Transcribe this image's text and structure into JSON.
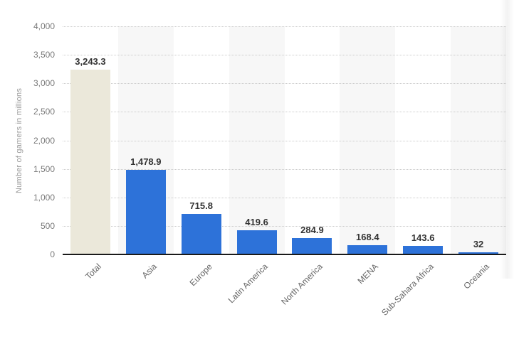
{
  "chart_data": {
    "type": "bar",
    "title": "",
    "xlabel": "",
    "ylabel": "Number of gamers in millions",
    "ylim": [
      0,
      4000
    ],
    "ytick_step": 500,
    "grid": "horizontal-dotted",
    "legend": "none",
    "background_stripes": "alternating columns, odd bands shaded",
    "categories": [
      "Total",
      "Asia",
      "Europe",
      "Latin America",
      "North America",
      "MENA",
      "Sub-Sahara Africa",
      "Oceania"
    ],
    "values": [
      3243.3,
      1478.9,
      715.8,
      419.6,
      284.9,
      168.4,
      143.6,
      32
    ],
    "value_labels": [
      "3,243.3",
      "1,478.9",
      "715.8",
      "419.6",
      "284.9",
      "168.4",
      "143.6",
      "32"
    ],
    "yticks": [
      {
        "value": 0,
        "label": "0"
      },
      {
        "value": 500,
        "label": "500"
      },
      {
        "value": 1000,
        "label": "1,000"
      },
      {
        "value": 1500,
        "label": "1,500"
      },
      {
        "value": 2000,
        "label": "2,000"
      },
      {
        "value": 2500,
        "label": "2,500"
      },
      {
        "value": 3000,
        "label": "3,000"
      },
      {
        "value": 3500,
        "label": "3,500"
      },
      {
        "value": 4000,
        "label": "4,000"
      }
    ],
    "colors": {
      "bar_default": "#2d72d9",
      "bar_total": "#ebe8da",
      "bar_colors": [
        "#ebe8da",
        "#2d72d9",
        "#2d72d9",
        "#2d72d9",
        "#2d72d9",
        "#2d72d9",
        "#2d72d9",
        "#2d72d9"
      ],
      "stripe": "#f7f7f7",
      "gridline": "#cccccc",
      "axis_line": "#1a1a1a",
      "value_label_text": "#333333",
      "tick_text": "#7a7a7a",
      "category_text": "#666666",
      "axis_title_text": "#9b9b9b"
    }
  }
}
